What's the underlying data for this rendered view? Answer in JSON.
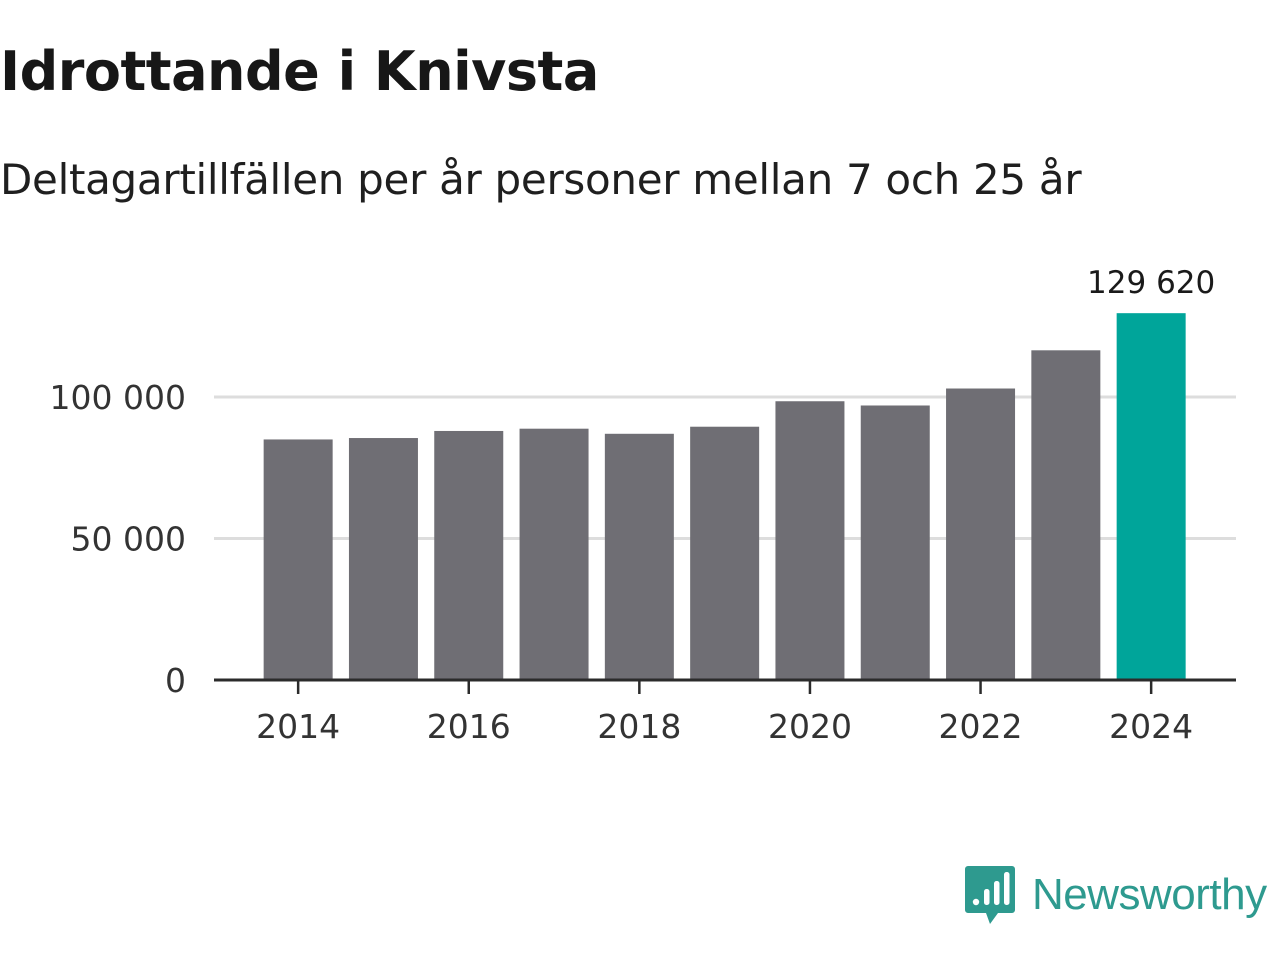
{
  "header": {
    "title": "Idrottande i Knivsta",
    "subtitle": "Deltagartillfällen per år personer mellan 7 och 25 år"
  },
  "chart_data": {
    "type": "bar",
    "title": "Idrottande i Knivsta",
    "subtitle": "Deltagartillfällen per år personer mellan 7 och 25 år",
    "xlabel": "",
    "ylabel": "",
    "categories": [
      "2014",
      "2015",
      "2016",
      "2017",
      "2018",
      "2019",
      "2020",
      "2021",
      "2022",
      "2023",
      "2024"
    ],
    "values": [
      85000,
      85500,
      88000,
      88800,
      87000,
      89500,
      98500,
      97000,
      103000,
      116500,
      129620
    ],
    "highlight_index": 10,
    "highlight_label": "129 620",
    "ylim": [
      0,
      130000
    ],
    "y_ticks": [
      {
        "value": 0,
        "label": "0"
      },
      {
        "value": 50000,
        "label": "50 000"
      },
      {
        "value": 100000,
        "label": "100 000"
      }
    ],
    "x_ticks": [
      "2014",
      "2016",
      "2018",
      "2020",
      "2022",
      "2024"
    ],
    "grid": true,
    "colors": {
      "bar": "#6f6e74",
      "highlight": "#00a59a",
      "grid": "#dddddd",
      "axis": "#2b2b2b"
    }
  },
  "brand": {
    "name": "Newsworthy",
    "icon": "newsworthy-logo-icon",
    "color": "#2e9a8f"
  }
}
